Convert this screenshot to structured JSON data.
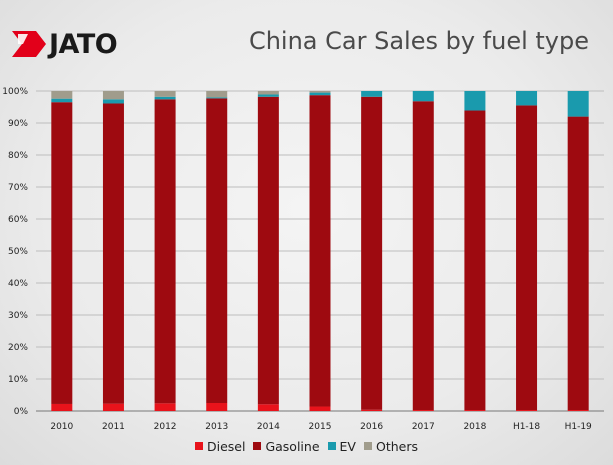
{
  "logo": {
    "text": "JATO"
  },
  "chart_data": {
    "type": "bar",
    "stacked": true,
    "title": "China Car Sales by fuel type",
    "xlabel": "",
    "ylabel": "",
    "ylim": [
      0,
      100
    ],
    "yticks": [
      "0%",
      "10%",
      "20%",
      "30%",
      "40%",
      "50%",
      "60%",
      "70%",
      "80%",
      "90%",
      "100%"
    ],
    "grid": true,
    "legend_position": "bottom",
    "categories": [
      "2010",
      "2011",
      "2012",
      "2013",
      "2014",
      "2015",
      "2016",
      "2017",
      "2018",
      "H1-18",
      "H1-19"
    ],
    "series": [
      {
        "name": "Diesel",
        "color": "#e8131b",
        "values": [
          2.2,
          2.3,
          2.4,
          2.5,
          2.1,
          1.4,
          0.4,
          0.3,
          0.3,
          0.3,
          0.3
        ]
      },
      {
        "name": "Gasoline",
        "color": "#9e0a10",
        "values": [
          94.3,
          93.8,
          95.0,
          95.2,
          96.1,
          97.3,
          97.8,
          96.5,
          93.6,
          95.2,
          91.7
        ]
      },
      {
        "name": "EV",
        "color": "#1a9aad",
        "values": [
          1.1,
          1.3,
          0.8,
          0.3,
          0.7,
          0.8,
          1.8,
          3.2,
          6.1,
          4.5,
          8.0
        ]
      },
      {
        "name": "Others",
        "color": "#a09c8c",
        "values": [
          2.4,
          2.6,
          1.8,
          2.0,
          1.1,
          0.5,
          0.0,
          0.0,
          0.0,
          0.0,
          0.0
        ]
      }
    ]
  }
}
